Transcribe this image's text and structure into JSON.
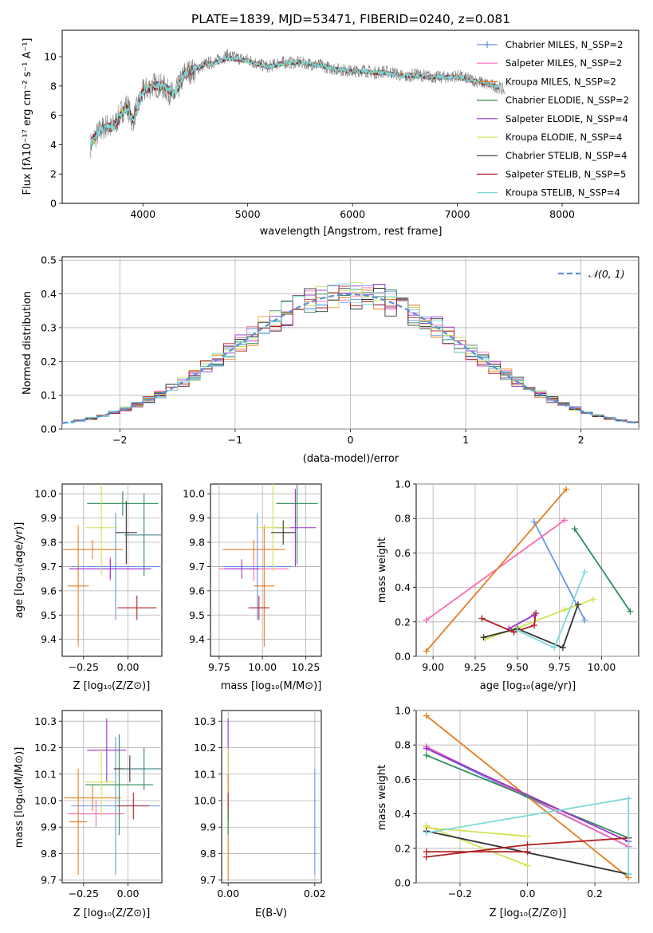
{
  "chart_data": [
    {
      "id": "spectrum",
      "type": "line",
      "title": "PLATE=1839, MJD=53471, FIBERID=0240, z=0.081",
      "xlabel": "wavelength [Angstrom, rest frame]",
      "ylabel": "Flux [fλ10⁻¹⁷ erg cm⁻² s⁻¹ A⁻¹]",
      "xlim": [
        3230,
        8730
      ],
      "ylim": [
        0,
        11.8
      ],
      "xticks": [
        4000,
        5000,
        6000,
        7000,
        8000
      ],
      "yticks": [
        0,
        2,
        4,
        6,
        8,
        10
      ],
      "grid": false,
      "legend_position": "top-right",
      "data_series": {
        "name": "",
        "color": "#808080",
        "x": [
          3500,
          3550,
          3600,
          3650,
          3700,
          3750,
          3800,
          3850,
          3900,
          3950,
          4000,
          4100,
          4200,
          4300,
          4400,
          4500,
          4600,
          4700,
          4800,
          4900,
          5000,
          5100,
          5200,
          5300,
          5400,
          5500,
          5600,
          5700,
          5800,
          5900,
          6000,
          6100,
          6200,
          6300,
          6400,
          6500,
          6600,
          6700,
          6800,
          6900,
          7000,
          7100,
          7200,
          7300,
          7400,
          7450
        ],
        "y": [
          4.0,
          4.6,
          5.0,
          5.3,
          5.1,
          5.6,
          6.3,
          6.7,
          5.6,
          6.6,
          7.6,
          8.1,
          7.9,
          7.3,
          8.9,
          9.1,
          9.5,
          9.7,
          10.1,
          9.9,
          9.8,
          9.5,
          9.3,
          9.6,
          9.6,
          9.6,
          9.5,
          9.4,
          9.2,
          9.1,
          9.0,
          9.1,
          8.9,
          9.0,
          8.9,
          8.6,
          8.8,
          8.7,
          8.6,
          8.6,
          8.7,
          8.5,
          8.3,
          8.1,
          7.9,
          7.7
        ]
      },
      "series": [
        {
          "name": "Chabrier MILES, N_SSP=2",
          "color": "#6495ed",
          "marker": "plus"
        },
        {
          "name": "Salpeter MILES, N_SSP=2",
          "color": "#ff69b4"
        },
        {
          "name": "Kroupa MILES, N_SSP=2",
          "color": "#e67e22"
        },
        {
          "name": "Chabrier ELODIE, N_SSP=2",
          "color": "#2e8b57"
        },
        {
          "name": "Salpeter ELODIE, N_SSP=4",
          "color": "#9932cc"
        },
        {
          "name": "Kroupa ELODIE, N_SSP=4",
          "color": "#d4e157"
        },
        {
          "name": "Chabrier STELIB, N_SSP=4",
          "color": "#333333"
        },
        {
          "name": "Salpeter STELIB, N_SSP=5",
          "color": "#b22222"
        },
        {
          "name": "Kroupa STELIB, N_SSP=4",
          "color": "#7fd8d8"
        }
      ],
      "model_x": [
        3500,
        3550,
        3600,
        3650,
        3700,
        3750,
        3800,
        3850,
        3900,
        3950,
        4000,
        4100,
        4200,
        4300,
        4400,
        4500,
        4600,
        4700,
        4800,
        4900,
        5000,
        5100,
        5200,
        5300,
        5400,
        5500,
        5600,
        5700,
        5800,
        5900,
        6000,
        6100,
        6200,
        6300,
        6400,
        6500,
        6600,
        6700,
        6800,
        6900,
        7000,
        7100,
        7200,
        7300,
        7400
      ],
      "model_y": [
        4.1,
        4.5,
        5.1,
        5.2,
        5.2,
        5.5,
        6.2,
        6.5,
        5.7,
        6.5,
        7.7,
        8.0,
        8.0,
        7.4,
        8.8,
        9.2,
        9.5,
        9.6,
        9.9,
        9.8,
        9.7,
        9.5,
        9.3,
        9.5,
        9.6,
        9.6,
        9.5,
        9.4,
        9.2,
        9.1,
        9.0,
        9.0,
        8.9,
        8.9,
        8.8,
        8.7,
        8.7,
        8.6,
        8.6,
        8.6,
        8.6,
        8.4,
        8.3,
        8.1,
        7.9
      ]
    },
    {
      "id": "residuals",
      "type": "histogram",
      "xlabel": "(data-model)/error",
      "ylabel": "Normed distribution",
      "xlim": [
        -2.5,
        2.5
      ],
      "ylim": [
        0,
        0.51
      ],
      "xticks": [
        -2,
        -1,
        0,
        1,
        2
      ],
      "yticks": [
        0.0,
        0.1,
        0.2,
        0.3,
        0.4,
        0.5
      ],
      "grid": true,
      "legend_position": "top-right",
      "reference_curve": {
        "name": "𝒩(0, 1)",
        "color": "#5b8fd6",
        "style": "dashed"
      },
      "bins": {
        "start": -2.5,
        "width": 0.1,
        "count": 50
      }
    },
    {
      "id": "age-vs-Z",
      "type": "scatter",
      "xlabel": "Z [log₁₀(Z/Z⊙)]",
      "ylabel": "age  [log₁₀(age/yr)]",
      "xlim": [
        -0.37,
        0.19
      ],
      "ylim": [
        9.33,
        10.04
      ],
      "xticks": [
        -0.25,
        0.0
      ],
      "xticklabels": [
        "−0.25",
        "0.00"
      ],
      "yticks": [
        9.4,
        9.5,
        9.6,
        9.7,
        9.8,
        9.9,
        10.0
      ],
      "grid": true,
      "points": [
        {
          "color": "#6495ed",
          "x": -0.07,
          "y": 9.7,
          "xerr": 0.25,
          "yerr": 0.22
        },
        {
          "color": "#ff69b4",
          "x": -0.1,
          "y": 9.69,
          "xerr": 0.23,
          "yerr": 0.05
        },
        {
          "color": "#e67e22",
          "x": -0.28,
          "y": 9.62,
          "xerr": 0.06,
          "yerr": 0.25
        },
        {
          "color": "#e67e22",
          "x": -0.2,
          "y": 9.77,
          "xerr": 0.17,
          "yerr": 0.04
        },
        {
          "color": "#2e8b57",
          "x": -0.03,
          "y": 9.96,
          "xerr": 0.2,
          "yerr": 0.05
        },
        {
          "color": "#9932cc",
          "x": -0.1,
          "y": 9.69,
          "xerr": 0.23,
          "yerr": 0.04
        },
        {
          "color": "#d4e157",
          "x": -0.15,
          "y": 9.86,
          "xerr": 0.09,
          "yerr": 0.2
        },
        {
          "color": "#333333",
          "x": -0.01,
          "y": 9.84,
          "xerr": 0.06,
          "yerr": 0.13
        },
        {
          "color": "#b22222",
          "x": 0.05,
          "y": 9.53,
          "xerr": 0.11,
          "yerr": 0.05
        },
        {
          "color": "#2f7f7f",
          "x": 0.09,
          "y": 9.83,
          "xerr": 0.11,
          "yerr": 0.17
        }
      ]
    },
    {
      "id": "age-vs-mass",
      "type": "scatter",
      "xlabel": "mass [log₁₀(M/M⊙)]",
      "xlim": [
        9.7,
        10.34
      ],
      "ylim": [
        9.33,
        10.04
      ],
      "xticks": [
        9.75,
        10.0,
        10.25
      ],
      "xticklabels": [
        "9.75",
        "10.00",
        "10.25"
      ],
      "yticks": [
        9.4,
        9.5,
        9.6,
        9.7,
        9.8,
        9.9,
        10.0
      ],
      "grid": true,
      "points": [
        {
          "color": "#6495ed",
          "x": 9.97,
          "y": 9.7,
          "xerr": 0.2,
          "yerr": 0.22
        },
        {
          "color": "#ff69b4",
          "x": 9.95,
          "y": 9.69,
          "xerr": 0.2,
          "yerr": 0.05
        },
        {
          "color": "#e67e22",
          "x": 10.01,
          "y": 9.62,
          "xerr": 0.06,
          "yerr": 0.25
        },
        {
          "color": "#e67e22",
          "x": 9.95,
          "y": 9.77,
          "xerr": 0.18,
          "yerr": 0.04
        },
        {
          "color": "#2e8b57",
          "x": 10.2,
          "y": 9.96,
          "xerr": 0.12,
          "yerr": 0.25
        },
        {
          "color": "#9932cc",
          "x": 10.19,
          "y": 9.86,
          "xerr": 0.12,
          "yerr": 0.16
        },
        {
          "color": "#d4e157",
          "x": 10.06,
          "y": 9.86,
          "xerr": 0.1,
          "yerr": 0.18
        },
        {
          "color": "#333333",
          "x": 10.12,
          "y": 9.84,
          "xerr": 0.07,
          "yerr": 0.05
        },
        {
          "color": "#b22222",
          "x": 9.98,
          "y": 9.53,
          "xerr": 0.06,
          "yerr": 0.05
        },
        {
          "color": "#9932cc",
          "x": 9.88,
          "y": 9.69,
          "xerr": 0.1,
          "yerr": 0.04
        }
      ]
    },
    {
      "id": "weight-vs-age",
      "type": "line",
      "xlabel": "age  [log₁₀(age/yr)]",
      "ylabel": "mass weight",
      "xlim": [
        8.9,
        10.22
      ],
      "ylim": [
        0,
        1.0
      ],
      "xticks": [
        9.0,
        9.25,
        9.5,
        9.75,
        10.0
      ],
      "xticklabels": [
        "9.00",
        "9.25",
        "9.50",
        "9.75",
        "10.00"
      ],
      "yticks": [
        0.0,
        0.2,
        0.4,
        0.6,
        0.8,
        1.0
      ],
      "grid": true,
      "series": [
        {
          "color": "#6495ed",
          "x": [
            9.6,
            9.9
          ],
          "y": [
            0.78,
            0.21
          ]
        },
        {
          "color": "#ff69b4",
          "x": [
            8.96,
            9.78
          ],
          "y": [
            0.21,
            0.79
          ]
        },
        {
          "color": "#e67e22",
          "x": [
            8.96,
            9.79
          ],
          "y": [
            0.03,
            0.97
          ]
        },
        {
          "color": "#2e8b57",
          "x": [
            9.84,
            10.17
          ],
          "y": [
            0.74,
            0.26
          ]
        },
        {
          "color": "#9932cc",
          "x": [
            9.45,
            9.6
          ],
          "y": [
            0.16,
            0.24
          ]
        },
        {
          "color": "#d4e157",
          "x": [
            9.31,
            9.49,
            9.78,
            9.95
          ],
          "y": [
            0.1,
            0.16,
            0.27,
            0.33
          ]
        },
        {
          "color": "#333333",
          "x": [
            9.3,
            9.5,
            9.77,
            9.86
          ],
          "y": [
            0.11,
            0.16,
            0.05,
            0.3
          ]
        },
        {
          "color": "#b22222",
          "x": [
            9.29,
            9.48,
            9.6,
            9.61
          ],
          "y": [
            0.22,
            0.14,
            0.18,
            0.25
          ]
        },
        {
          "color": "#7fd8d8",
          "x": [
            9.5,
            9.72,
            9.9
          ],
          "y": [
            0.15,
            0.05,
            0.49
          ]
        }
      ]
    },
    {
      "id": "mass-vs-Z",
      "type": "scatter",
      "xlabel": "Z [log₁₀(Z/Z⊙)]",
      "ylabel": "mass [log₁₀(M/M⊙)]",
      "xlim": [
        -0.37,
        0.19
      ],
      "ylim": [
        9.69,
        10.34
      ],
      "xticks": [
        -0.25,
        0.0
      ],
      "xticklabels": [
        "−0.25",
        "0.00"
      ],
      "yticks": [
        9.7,
        9.8,
        9.9,
        10.0,
        10.1,
        10.2,
        10.3
      ],
      "grid": true,
      "points": [
        {
          "color": "#6495ed",
          "x": -0.07,
          "y": 9.98,
          "xerr": 0.25,
          "yerr": 0.26
        },
        {
          "color": "#ff69b4",
          "x": -0.18,
          "y": 9.95,
          "xerr": 0.16,
          "yerr": 0.05
        },
        {
          "color": "#e67e22",
          "x": -0.28,
          "y": 9.92,
          "xerr": 0.05,
          "yerr": 0.2
        },
        {
          "color": "#e67e22",
          "x": -0.2,
          "y": 10.01,
          "xerr": 0.16,
          "yerr": 0.05
        },
        {
          "color": "#2e8b57",
          "x": -0.05,
          "y": 10.06,
          "xerr": 0.19,
          "yerr": 0.19
        },
        {
          "color": "#9932cc",
          "x": -0.12,
          "y": 10.19,
          "xerr": 0.11,
          "yerr": 0.12
        },
        {
          "color": "#d4e157",
          "x": -0.15,
          "y": 10.07,
          "xerr": 0.09,
          "yerr": 0.13
        },
        {
          "color": "#333333",
          "x": 0.01,
          "y": 10.12,
          "xerr": 0.09,
          "yerr": 0.05
        },
        {
          "color": "#b22222",
          "x": 0.03,
          "y": 9.98,
          "xerr": 0.09,
          "yerr": 0.05
        },
        {
          "color": "#2f7f7f",
          "x": 0.09,
          "y": 10.12,
          "xerr": 0.11,
          "yerr": 0.08
        }
      ]
    },
    {
      "id": "mass-vs-ebv",
      "type": "scatter",
      "xlabel": "E(B-V)",
      "xlim": [
        -0.0015,
        0.0215
      ],
      "ylim": [
        9.69,
        10.34
      ],
      "xticks": [
        0.0,
        0.02
      ],
      "xticklabels": [
        "0.00",
        "0.02"
      ],
      "yticks": [
        9.7,
        9.8,
        9.9,
        10.0,
        10.1,
        10.2,
        10.3
      ],
      "grid": true,
      "points": [
        {
          "color": "#9932cc",
          "x": 0.0,
          "y": 10.19,
          "xerr": 0,
          "yerr": 0.12
        },
        {
          "color": "#d4e157",
          "x": 0.0,
          "y": 10.07,
          "xerr": 0,
          "yerr": 0.13
        },
        {
          "color": "#e67e22",
          "x": 0.0,
          "y": 9.9,
          "xerr": 0,
          "yerr": 0.2
        },
        {
          "color": "#b22222",
          "x": 0.0,
          "y": 9.98,
          "xerr": 0,
          "yerr": 0.05
        },
        {
          "color": "#2e8b57",
          "x": 0.0,
          "y": 9.92,
          "xerr": 0,
          "yerr": 0.05
        },
        {
          "color": "#6495ed",
          "x": 0.02,
          "y": 9.92,
          "xerr": 0,
          "yerr": 0.2
        }
      ]
    },
    {
      "id": "weight-vs-Z",
      "type": "line",
      "xlabel": "Z [log₁₀(Z/Z⊙)]",
      "ylabel": "mass weight",
      "xlim": [
        -0.33,
        0.33
      ],
      "ylim": [
        0,
        1.0
      ],
      "xticks": [
        -0.2,
        0.0,
        0.2
      ],
      "xticklabels": [
        "−0.2",
        "0.0",
        "0.2"
      ],
      "yticks": [
        0.0,
        0.2,
        0.4,
        0.6,
        0.8,
        1.0
      ],
      "grid": true,
      "series": [
        {
          "color": "#6495ed",
          "x": [
            -0.3,
            0.3
          ],
          "y": [
            0.78,
            0.21
          ]
        },
        {
          "color": "#ff69b4",
          "x": [
            -0.3,
            0.3
          ],
          "y": [
            0.79,
            0.21
          ]
        },
        {
          "color": "#e67e22",
          "x": [
            -0.3,
            0.3
          ],
          "y": [
            0.97,
            0.03
          ]
        },
        {
          "color": "#2e8b57",
          "x": [
            -0.3,
            0.3
          ],
          "y": [
            0.74,
            0.26
          ]
        },
        {
          "color": "#9932cc",
          "x": [
            -0.3,
            0.3
          ],
          "y": [
            0.78,
            0.24
          ]
        },
        {
          "color": "#d4e157",
          "x": [
            -0.3,
            0.0
          ],
          "y": [
            0.33,
            0.1
          ]
        },
        {
          "color": "#d4e157",
          "x": [
            -0.3,
            0.0
          ],
          "y": [
            0.32,
            0.27
          ]
        },
        {
          "color": "#333333",
          "x": [
            -0.3,
            0.3
          ],
          "y": [
            0.3,
            0.05
          ]
        },
        {
          "color": "#b22222",
          "x": [
            -0.3,
            0.0,
            0.3
          ],
          "y": [
            0.15,
            0.22,
            0.26
          ]
        },
        {
          "color": "#b22222",
          "x": [
            -0.3,
            0.0
          ],
          "y": [
            0.18,
            0.18
          ]
        },
        {
          "color": "#7fd8d8",
          "x": [
            -0.3,
            0.3,
            0.3
          ],
          "y": [
            0.29,
            0.49,
            0.05
          ]
        }
      ]
    }
  ]
}
